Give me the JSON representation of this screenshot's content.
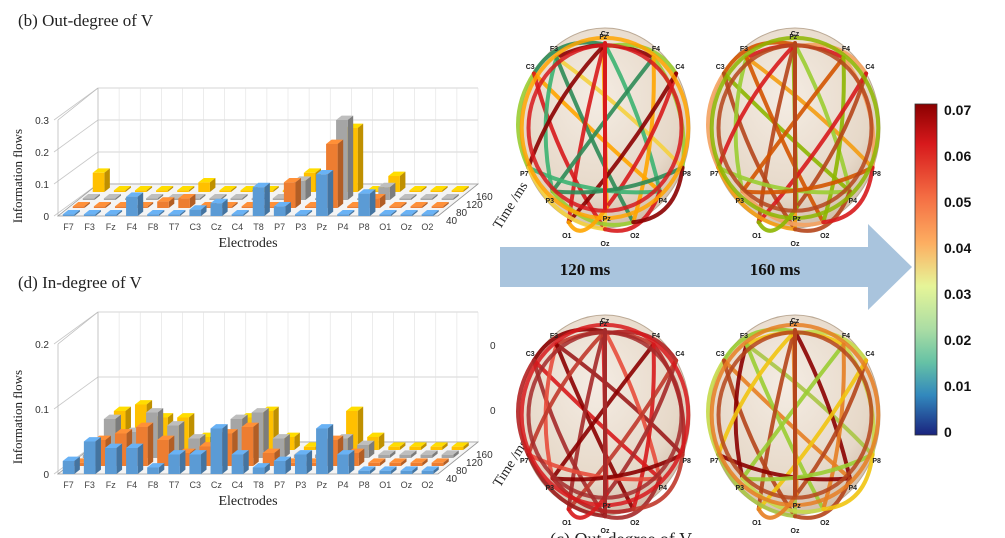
{
  "chart_data": [
    {
      "type": "bar",
      "title": "(b) Out-degree of V",
      "xlabel": "Electrodes",
      "ylabel": "Information flows",
      "zlabel": "Time /ms",
      "ylim": [
        0,
        0.3
      ],
      "yticks": [
        "0",
        "0.1",
        "0.2",
        "0.3"
      ],
      "categories": [
        "F7",
        "F3",
        "Fz",
        "F4",
        "F8",
        "T7",
        "C3",
        "Cz",
        "C4",
        "T8",
        "P7",
        "P3",
        "Pz",
        "P4",
        "P8",
        "O1",
        "Oz",
        "O2"
      ],
      "time_ticks": [
        "40",
        "80",
        "120",
        "160"
      ],
      "series": [
        {
          "name": "40",
          "color": "#5b9bd5",
          "values": [
            0.005,
            0.005,
            0.005,
            0.06,
            0.005,
            0.005,
            0.02,
            0.04,
            0.005,
            0.09,
            0.03,
            0.005,
            0.13,
            0.005,
            0.07,
            0.005,
            0.005,
            0.005
          ]
        },
        {
          "name": "80",
          "color": "#ed7d31",
          "values": [
            0.005,
            0.005,
            0.005,
            0.005,
            0.02,
            0.03,
            0.005,
            0.005,
            0.005,
            0.005,
            0.08,
            0.005,
            0.2,
            0.005,
            0.03,
            0.005,
            0.005,
            0.005
          ]
        },
        {
          "name": "120",
          "color": "#a5a5a5",
          "values": [
            0.005,
            0.005,
            0.005,
            0.005,
            0.005,
            0.005,
            0.005,
            0.005,
            0.005,
            0.005,
            0.06,
            0.005,
            0.25,
            0.005,
            0.04,
            0.005,
            0.005,
            0.005
          ]
        },
        {
          "name": "160",
          "color": "#ffc000",
          "values": [
            0.06,
            0.005,
            0.005,
            0.005,
            0.005,
            0.03,
            0.005,
            0.005,
            0.005,
            0.005,
            0.06,
            0.005,
            0.2,
            0.005,
            0.05,
            0.005,
            0.005,
            0.005
          ]
        }
      ]
    },
    {
      "type": "bar",
      "title": "(d) In-degree of V",
      "xlabel": "Electrodes",
      "ylabel": "Information flows",
      "zlabel": "Time /ms",
      "ylim": [
        0,
        0.2
      ],
      "yticks": [
        "0",
        "0.1",
        "0.2"
      ],
      "categories": [
        "F7",
        "F3",
        "Fz",
        "F4",
        "F8",
        "T7",
        "C3",
        "Cz",
        "C4",
        "T8",
        "P7",
        "P3",
        "Pz",
        "P4",
        "P8",
        "O1",
        "Oz",
        "O2"
      ],
      "time_ticks": [
        "40",
        "80",
        "120",
        "160"
      ],
      "series": [
        {
          "name": "40",
          "color": "#5b9bd5",
          "values": [
            0.02,
            0.05,
            0.04,
            0.04,
            0.01,
            0.03,
            0.03,
            0.07,
            0.03,
            0.01,
            0.02,
            0.03,
            0.07,
            0.03,
            0.005,
            0.005,
            0.005,
            0.005
          ]
        },
        {
          "name": "80",
          "color": "#ed7d31",
          "values": [
            0.005,
            0.04,
            0.05,
            0.06,
            0.04,
            0.02,
            0.03,
            0.05,
            0.06,
            0.02,
            0.005,
            0.005,
            0.04,
            0.02,
            0.005,
            0.005,
            0.005,
            0.005
          ]
        },
        {
          "name": "120",
          "color": "#a5a5a5",
          "values": [
            0.005,
            0.06,
            0.04,
            0.07,
            0.05,
            0.03,
            0.02,
            0.06,
            0.07,
            0.03,
            0.005,
            0.005,
            0.03,
            0.02,
            0.005,
            0.005,
            0.005,
            0.005
          ]
        },
        {
          "name": "160",
          "color": "#ffc000",
          "values": [
            0.005,
            0.06,
            0.07,
            0.05,
            0.05,
            0.02,
            0.02,
            0.05,
            0.06,
            0.02,
            0.005,
            0.005,
            0.06,
            0.02,
            0.005,
            0.005,
            0.005,
            0.005
          ]
        }
      ]
    },
    {
      "type": "heatmap",
      "colorbar_ticks": [
        "0.07",
        "0.06",
        "0.05",
        "0.04",
        "0.03",
        "0.02",
        "0.01",
        "0"
      ],
      "colorbar_colors": [
        "#8b0000",
        "#d7191c",
        "#f46d43",
        "#fdae61",
        "#e6f598",
        "#abdda4",
        "#66c2a5",
        "#3288bd",
        "#2c3e9b",
        "#1a237e"
      ]
    }
  ],
  "arrow": {
    "label_left": "120 ms",
    "label_right": "160 ms"
  },
  "head_labels": [
    "C3",
    "F3",
    "Fz",
    "Cz",
    "F4",
    "C4",
    "P7",
    "P3",
    "Pz",
    "P4",
    "P8",
    "O1",
    "Oz",
    "O2"
  ],
  "bottom_caption": "(c) Out-degree of V",
  "side_marks": [
    "0",
    "0"
  ]
}
